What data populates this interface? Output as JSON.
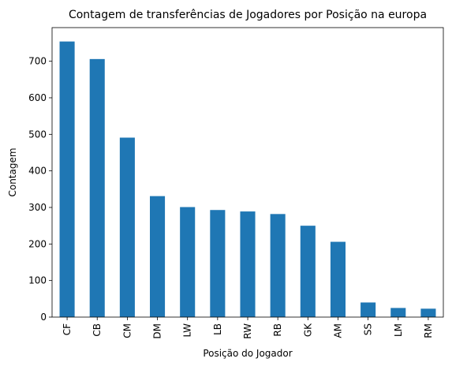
{
  "chart_data": {
    "type": "bar",
    "title": "Contagem de transferências de Jogadores por Posição na europa",
    "xlabel": "Posição do Jogador",
    "ylabel": "Contagem",
    "categories": [
      "CF",
      "CB",
      "CM",
      "DM",
      "LW",
      "LB",
      "RW",
      "RB",
      "GK",
      "AM",
      "SS",
      "LM",
      "RM"
    ],
    "values": [
      754,
      706,
      491,
      331,
      301,
      293,
      289,
      282,
      250,
      206,
      40,
      25,
      23
    ],
    "ylim": [
      0,
      792
    ],
    "yticks": [
      0,
      100,
      200,
      300,
      400,
      500,
      600,
      700
    ],
    "grid": false,
    "bar_color": "#1f77b4"
  }
}
